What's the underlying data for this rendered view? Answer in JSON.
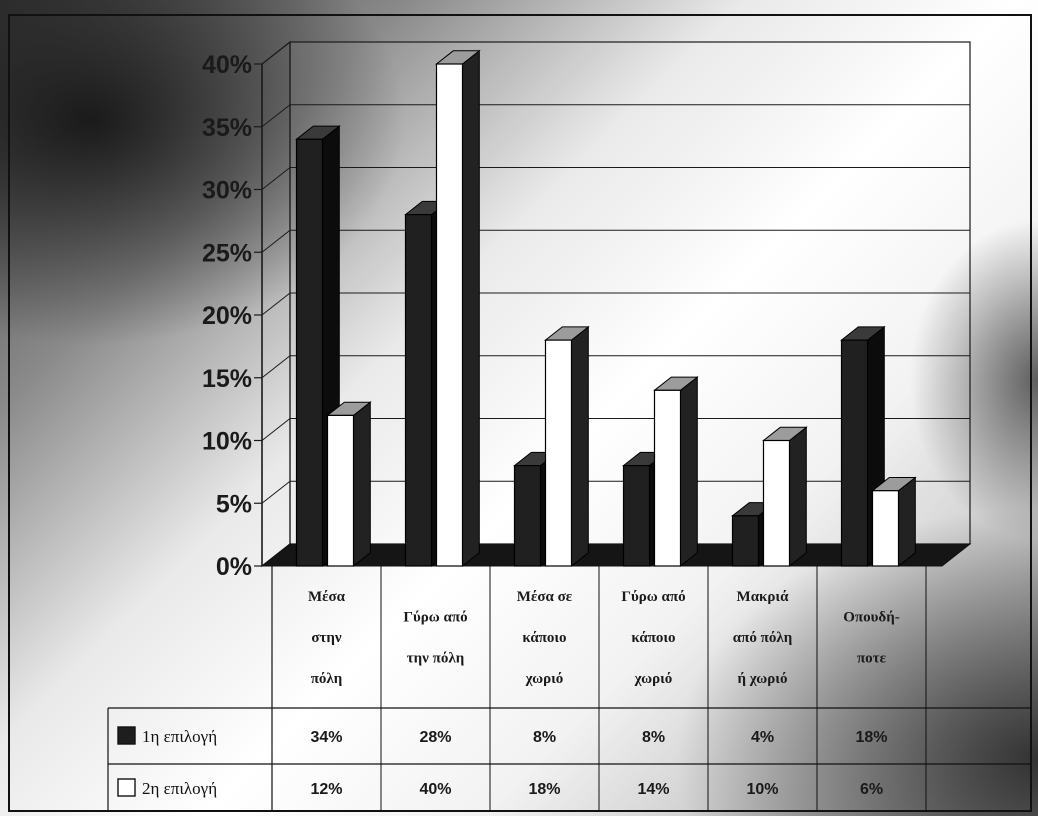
{
  "chart_data": {
    "type": "bar",
    "title": "",
    "xlabel": "",
    "ylabel": "",
    "ylim": [
      0,
      40
    ],
    "yticks": [
      "0%",
      "5%",
      "10%",
      "15%",
      "20%",
      "25%",
      "30%",
      "35%",
      "40%"
    ],
    "grid": true,
    "legend_position": "bottom data table",
    "categories": [
      [
        "Μέσα",
        "στην",
        "πόλη"
      ],
      [
        "Γύρω από",
        "την πόλη"
      ],
      [
        "Μέσα σε",
        "κάποιο",
        "χωριό"
      ],
      [
        "Γύρω από",
        "κάποιο",
        "χωριό"
      ],
      [
        "Μακριά",
        "από πόλη",
        "ή χωριό"
      ],
      [
        "Οπουδή-",
        "ποτε"
      ]
    ],
    "series": [
      {
        "name": "1η επιλογή",
        "values": [
          34,
          28,
          8,
          8,
          4,
          18
        ],
        "labels": [
          "34%",
          "28%",
          "8%",
          "8%",
          "4%",
          "18%"
        ],
        "color": "#1e1e1e"
      },
      {
        "name": "2η επιλογή",
        "values": [
          12,
          40,
          18,
          14,
          10,
          6
        ],
        "labels": [
          "12%",
          "40%",
          "18%",
          "14%",
          "10%",
          "6%"
        ],
        "color": "#ffffff"
      }
    ]
  }
}
